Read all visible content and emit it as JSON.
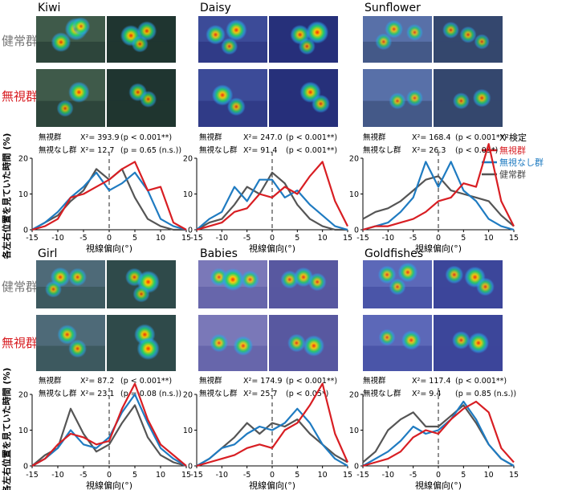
{
  "figure": {
    "row_labels": [
      "健常群",
      "無視群"
    ],
    "y_axis_label": "各左右位置を見ていた時間 (%)",
    "x_axis_label": "視線偏向(°)",
    "legend": {
      "title": "X²検定",
      "entries": [
        "無視群",
        "無視なし群",
        "健常群"
      ]
    }
  },
  "colors": {
    "neglect": "#d81e23",
    "no_neglect": "#1f7bc1",
    "healthy": "#555555"
  },
  "chart_data": [
    {
      "type": "line",
      "title": "Kiwi",
      "stats": [
        {
          "group": "無視群",
          "chi2": "X²= 393.9",
          "p": "(p < 0.001**)"
        },
        {
          "group": "無視なし群",
          "chi2": "X²= 12.7",
          "p": "(p = 0.65 (n.s.))"
        }
      ],
      "x": [
        -15,
        -12.5,
        -10,
        -7.5,
        -5,
        -2.5,
        0,
        2.5,
        5,
        7.5,
        10,
        12.5,
        15
      ],
      "xlim": [
        -15,
        15
      ],
      "ylim": [
        0,
        20
      ],
      "xticks": [
        -15,
        -10,
        -5,
        0,
        5,
        10,
        15
      ],
      "yticks": [
        0,
        10,
        20
      ],
      "series": [
        {
          "name": "無視群",
          "values": [
            0,
            1,
            3,
            9,
            10,
            12,
            14,
            17,
            19,
            11,
            12,
            2,
            0
          ]
        },
        {
          "name": "無視なし群",
          "values": [
            0,
            2,
            5,
            9,
            12,
            16,
            11,
            13,
            16,
            11,
            3,
            1,
            0
          ]
        },
        {
          "name": "健常群",
          "values": [
            0,
            2,
            4,
            8,
            11,
            17,
            14,
            17,
            9,
            3,
            1,
            0,
            0
          ]
        }
      ]
    },
    {
      "type": "line",
      "title": "Daisy",
      "stats": [
        {
          "group": "無視群",
          "chi2": "X²= 247.0",
          "p": "(p < 0.001**)"
        },
        {
          "group": "無視なし群",
          "chi2": "X²= 91.4",
          "p": "(p < 0.001**)"
        }
      ],
      "x": [
        -15,
        -12.5,
        -10,
        -7.5,
        -5,
        -2.5,
        0,
        2.5,
        5,
        7.5,
        10,
        12.5,
        15
      ],
      "xlim": [
        -15,
        15
      ],
      "ylim": [
        0,
        20
      ],
      "xticks": [
        -15,
        -10,
        -5,
        0,
        5,
        10,
        15
      ],
      "yticks": [
        0,
        10,
        20
      ],
      "series": [
        {
          "name": "無視群",
          "values": [
            0,
            1,
            2,
            5,
            6,
            10,
            9,
            12,
            10,
            15,
            19,
            8,
            1
          ]
        },
        {
          "name": "無視なし群",
          "values": [
            0,
            3,
            5,
            12,
            8,
            14,
            14,
            9,
            11,
            7,
            4,
            1,
            0
          ]
        },
        {
          "name": "健常群",
          "values": [
            0,
            2,
            3,
            7,
            12,
            10,
            16,
            13,
            7,
            3,
            1,
            0,
            0
          ]
        }
      ]
    },
    {
      "type": "line",
      "title": "Sunflower",
      "stats": [
        {
          "group": "無視群",
          "chi2": "X²= 168.4",
          "p": "(p < 0.001**)"
        },
        {
          "group": "無視なし群",
          "chi2": "X²= 26.3",
          "p": "(p < 0.05*)"
        }
      ],
      "x": [
        -15,
        -12.5,
        -10,
        -7.5,
        -5,
        -2.5,
        0,
        2.5,
        5,
        7.5,
        10,
        12.5,
        15
      ],
      "xlim": [
        -15,
        15
      ],
      "ylim": [
        0,
        20
      ],
      "xticks": [
        -15,
        -10,
        -5,
        0,
        5,
        10,
        15
      ],
      "yticks": [
        0,
        10,
        20
      ],
      "series": [
        {
          "name": "無視群",
          "values": [
            0,
            1,
            1,
            2,
            3,
            5,
            8,
            9,
            13,
            12,
            24,
            8,
            1
          ]
        },
        {
          "name": "無視なし群",
          "values": [
            0,
            1,
            2,
            5,
            9,
            19,
            12,
            19,
            11,
            8,
            3,
            1,
            0
          ]
        },
        {
          "name": "健常群",
          "values": [
            3,
            5,
            6,
            8,
            11,
            14,
            15,
            11,
            10,
            9,
            8,
            4,
            1
          ]
        }
      ]
    },
    {
      "type": "line",
      "title": "Girl",
      "stats": [
        {
          "group": "無視群",
          "chi2": "X²= 87.2",
          "p": "(p < 0.001**)"
        },
        {
          "group": "無視なし群",
          "chi2": "X²= 23.1",
          "p": "(p = 0.08 (n.s.))"
        }
      ],
      "x": [
        -15,
        -12.5,
        -10,
        -7.5,
        -5,
        -2.5,
        0,
        2.5,
        5,
        7.5,
        10,
        12.5,
        15
      ],
      "xlim": [
        -15,
        15
      ],
      "ylim": [
        0,
        20
      ],
      "xticks": [
        -15,
        -10,
        -5,
        0,
        5,
        10,
        15
      ],
      "yticks": [
        0,
        10,
        20
      ],
      "series": [
        {
          "name": "無視群",
          "values": [
            0,
            2,
            6,
            9,
            8,
            6,
            7,
            16,
            23,
            13,
            6,
            3,
            0
          ]
        },
        {
          "name": "無視なし群",
          "values": [
            0,
            2,
            5,
            10,
            6,
            5,
            8,
            15,
            20,
            12,
            5,
            2,
            0
          ]
        },
        {
          "name": "健常群",
          "values": [
            0,
            3,
            5,
            16,
            9,
            4,
            6,
            12,
            17,
            8,
            3,
            1,
            0
          ]
        }
      ]
    },
    {
      "type": "line",
      "title": "Babies",
      "stats": [
        {
          "group": "無視群",
          "chi2": "X²= 174.9",
          "p": "(p < 0.001**)"
        },
        {
          "group": "無視なし群",
          "chi2": "X²= 25.7",
          "p": "(p < 0.05*)"
        }
      ],
      "x": [
        -15,
        -12.5,
        -10,
        -7.5,
        -5,
        -2.5,
        0,
        2.5,
        5,
        7.5,
        10,
        12.5,
        15
      ],
      "xlim": [
        -15,
        15
      ],
      "ylim": [
        0,
        20
      ],
      "xticks": [
        -15,
        -10,
        -5,
        0,
        5,
        10,
        15
      ],
      "yticks": [
        0,
        10,
        20
      ],
      "series": [
        {
          "name": "無視群",
          "values": [
            0,
            1,
            2,
            3,
            5,
            6,
            5,
            10,
            12,
            17,
            23,
            9,
            1
          ]
        },
        {
          "name": "無視なし群",
          "values": [
            0,
            2,
            5,
            6,
            9,
            11,
            10,
            12,
            16,
            12,
            6,
            2,
            0
          ]
        },
        {
          "name": "健常群",
          "values": [
            0,
            2,
            5,
            8,
            12,
            9,
            12,
            11,
            13,
            9,
            6,
            3,
            1
          ]
        }
      ]
    },
    {
      "type": "line",
      "title": "Goldfishes",
      "stats": [
        {
          "group": "無視群",
          "chi2": "X²= 117.4",
          "p": "(p < 0.001**)"
        },
        {
          "group": "無視なし群",
          "chi2": "X²= 9.4",
          "p": "(p = 0.85 (n.s.))"
        }
      ],
      "x": [
        -15,
        -12.5,
        -10,
        -7.5,
        -5,
        -2.5,
        0,
        2.5,
        5,
        7.5,
        10,
        12.5,
        15
      ],
      "xlim": [
        -15,
        15
      ],
      "ylim": [
        0,
        20
      ],
      "xticks": [
        -15,
        -10,
        -5,
        0,
        5,
        10,
        15
      ],
      "yticks": [
        0,
        10,
        20
      ],
      "series": [
        {
          "name": "無視群",
          "values": [
            0,
            1,
            2,
            4,
            8,
            10,
            9,
            13,
            16,
            18,
            15,
            5,
            1
          ]
        },
        {
          "name": "無視なし群",
          "values": [
            0,
            2,
            4,
            7,
            11,
            9,
            10,
            13,
            18,
            13,
            6,
            2,
            0
          ]
        },
        {
          "name": "健常群",
          "values": [
            1,
            4,
            10,
            13,
            15,
            11,
            11,
            14,
            17,
            12,
            6,
            2,
            0
          ]
        }
      ]
    }
  ],
  "heatmaps": [
    {
      "bg": "#3f5a4a",
      "bg2": "#1f3530",
      "rows": [
        {
          "left": [
            [
              0.58,
              0.28,
              0.9
            ],
            [
              0.36,
              0.56,
              0.7
            ],
            [
              0.65,
              0.22,
              0.6
            ]
          ],
          "right": [
            [
              0.35,
              0.42,
              0.8
            ],
            [
              0.58,
              0.32,
              0.7
            ],
            [
              0.48,
              0.6,
              0.5
            ]
          ]
        },
        {
          "left": [
            [
              0.62,
              0.4,
              0.8
            ],
            [
              0.42,
              0.68,
              0.5
            ]
          ],
          "right": [
            [
              0.45,
              0.4,
              0.6
            ],
            [
              0.6,
              0.52,
              0.5
            ]
          ]
        }
      ]
    },
    {
      "bg": "#3c4b98",
      "bg2": "#26307a",
      "rows": [
        {
          "left": [
            [
              0.25,
              0.4,
              0.7
            ],
            [
              0.55,
              0.3,
              0.8
            ],
            [
              0.45,
              0.65,
              0.5
            ]
          ],
          "right": [
            [
              0.45,
              0.4,
              0.7
            ],
            [
              0.7,
              0.35,
              0.9
            ],
            [
              0.55,
              0.65,
              0.5
            ]
          ]
        },
        {
          "left": [
            [
              0.35,
              0.45,
              0.8
            ],
            [
              0.55,
              0.65,
              0.6
            ]
          ],
          "right": [
            [
              0.6,
              0.4,
              0.8
            ],
            [
              0.75,
              0.6,
              0.6
            ]
          ]
        }
      ]
    },
    {
      "bg": "#5870a8",
      "bg2": "#34476e",
      "rows": [
        {
          "left": [
            [
              0.45,
              0.28,
              0.6
            ],
            [
              0.75,
              0.35,
              0.5
            ],
            [
              0.3,
              0.55,
              0.5
            ]
          ],
          "right": [
            [
              0.25,
              0.3,
              0.5
            ],
            [
              0.5,
              0.4,
              0.5
            ],
            [
              0.7,
              0.55,
              0.4
            ]
          ]
        },
        {
          "left": [
            [
              0.5,
              0.55,
              0.5
            ],
            [
              0.75,
              0.5,
              0.5
            ]
          ],
          "right": [
            [
              0.4,
              0.55,
              0.5
            ],
            [
              0.7,
              0.5,
              0.6
            ]
          ]
        }
      ]
    },
    {
      "bg": "#4e6a78",
      "bg2": "#2f4a4a",
      "rows": [
        {
          "left": [
            [
              0.35,
              0.35,
              0.7
            ],
            [
              0.6,
              0.35,
              0.6
            ],
            [
              0.25,
              0.6,
              0.5
            ]
          ],
          "right": [
            [
              0.4,
              0.35,
              0.6
            ],
            [
              0.6,
              0.45,
              0.9
            ],
            [
              0.5,
              0.7,
              0.5
            ]
          ]
        },
        {
          "left": [
            [
              0.45,
              0.35,
              0.7
            ],
            [
              0.6,
              0.6,
              0.6
            ]
          ],
          "right": [
            [
              0.55,
              0.35,
              0.8
            ],
            [
              0.6,
              0.6,
              0.9
            ]
          ]
        }
      ]
    },
    {
      "bg": "#7a78b8",
      "bg2": "#5858a0",
      "rows": [
        {
          "left": [
            [
              0.3,
              0.35,
              0.6
            ],
            [
              0.5,
              0.4,
              0.9
            ],
            [
              0.75,
              0.4,
              0.6
            ]
          ],
          "right": [
            [
              0.3,
              0.4,
              0.6
            ],
            [
              0.5,
              0.35,
              0.7
            ],
            [
              0.7,
              0.45,
              0.6
            ]
          ]
        },
        {
          "left": [
            [
              0.3,
              0.5,
              0.6
            ],
            [
              0.65,
              0.55,
              0.7
            ]
          ],
          "right": [
            [
              0.4,
              0.5,
              0.6
            ],
            [
              0.65,
              0.55,
              0.8
            ]
          ]
        }
      ]
    },
    {
      "bg": "#5c68b8",
      "bg2": "#3c469a",
      "rows": [
        {
          "left": [
            [
              0.35,
              0.3,
              0.6
            ],
            [
              0.65,
              0.25,
              0.7
            ],
            [
              0.5,
              0.55,
              0.5
            ]
          ],
          "right": [
            [
              0.3,
              0.3,
              0.6
            ],
            [
              0.6,
              0.35,
              0.8
            ],
            [
              0.75,
              0.55,
              0.6
            ]
          ]
        },
        {
          "left": [
            [
              0.35,
              0.4,
              0.5
            ],
            [
              0.7,
              0.45,
              0.7
            ]
          ],
          "right": [
            [
              0.4,
              0.45,
              0.6
            ],
            [
              0.65,
              0.5,
              0.8
            ]
          ]
        }
      ]
    }
  ]
}
